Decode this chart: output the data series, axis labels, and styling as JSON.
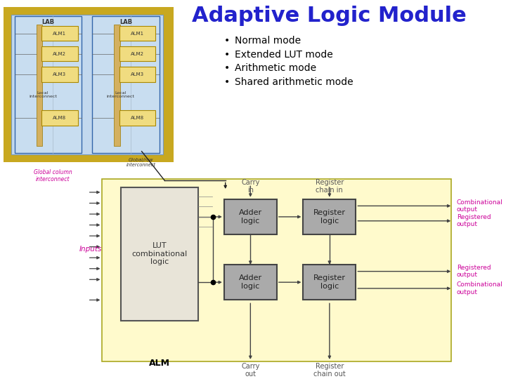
{
  "title": "Adaptive Logic Module",
  "title_color": "#2222cc",
  "title_fontsize": 22,
  "bullets": [
    "Normal mode",
    "Extended LUT mode",
    "Arithmetic mode",
    "Shared arithmetic mode"
  ],
  "bullet_color": "#000000",
  "bullet_fontsize": 10,
  "bg_color": "#ffffff",
  "lab_border": "#c8a820",
  "lab_inner_bg": "#c2d8ee",
  "lab_cell_bg": "#c8ddf0",
  "alm_box_color": "#aaaaaa",
  "alm_lut_color": "#e8e4d8",
  "alm_bg": "#fffacc",
  "magenta": "#cc0099",
  "arrow_color": "#333333",
  "diagram_line": "#444444",
  "text_gray": "#555555"
}
